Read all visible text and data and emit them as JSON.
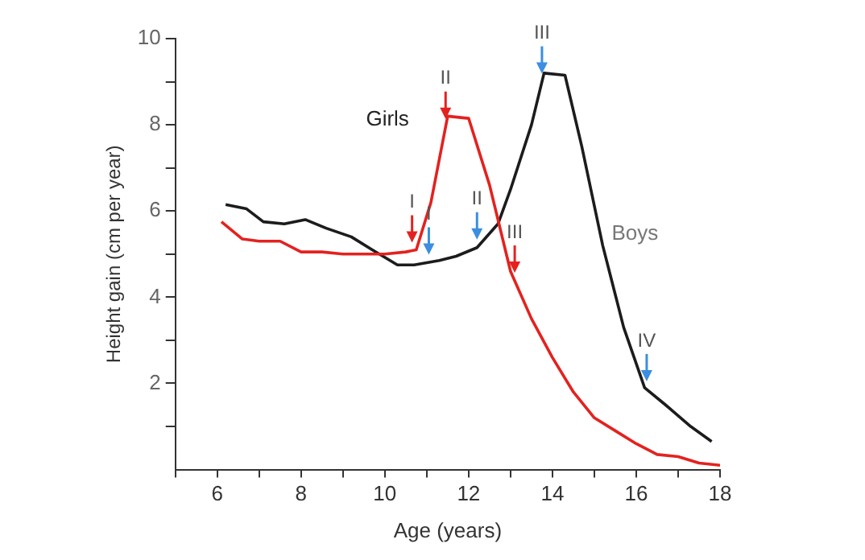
{
  "chart_data": {
    "type": "line",
    "xlabel": "Age (years)",
    "ylabel": "Height gain (cm per year)",
    "xlim": [
      5,
      18
    ],
    "ylim": [
      0,
      10
    ],
    "xticks": [
      {
        "value": 5,
        "label": null
      },
      6,
      {
        "value": 7,
        "label": null
      },
      8,
      {
        "value": 9,
        "label": null
      },
      10,
      {
        "value": 11,
        "label": null
      },
      12,
      {
        "value": 13,
        "label": null
      },
      14,
      {
        "value": 15,
        "label": null
      },
      16,
      {
        "value": 17,
        "label": null
      },
      18
    ],
    "yticks": [
      {
        "value": 1,
        "label": null
      },
      2,
      {
        "value": 3,
        "label": null
      },
      4,
      {
        "value": 5,
        "label": null
      },
      6,
      {
        "value": 7,
        "label": null
      },
      8,
      {
        "value": 9,
        "label": null
      },
      10
    ],
    "grid": false,
    "legend": "top left",
    "marker": "none",
    "line_style": "solid",
    "series": [
      {
        "name": "Girls",
        "color": "#e3221f",
        "x": [
          6.1,
          6.6,
          7,
          7.5,
          8,
          8.5,
          9,
          9.5,
          10,
          10.5,
          10.75,
          11.1,
          11.5,
          12,
          12.5,
          13,
          13.5,
          14,
          14.5,
          15,
          15.5,
          16,
          16.5,
          17,
          17.5,
          18
        ],
        "values": [
          5.75,
          5.35,
          5.3,
          5.3,
          5.05,
          5.05,
          5.0,
          5.0,
          5.0,
          5.05,
          5.1,
          6.2,
          8.2,
          8.15,
          6.6,
          4.6,
          3.5,
          2.6,
          1.8,
          1.2,
          0.9,
          0.6,
          0.35,
          0.3,
          0.15,
          0.1
        ]
      },
      {
        "name": "Boys",
        "color": "#1c1c1c",
        "x": [
          6.2,
          6.7,
          7.1,
          7.6,
          8.1,
          8.6,
          9.2,
          9.7,
          10.3,
          10.7,
          11.3,
          11.7,
          12.2,
          12.7,
          13.0,
          13.5,
          13.8,
          14.3,
          14.7,
          15.2,
          15.7,
          16.2,
          16.7,
          17.3,
          17.8
        ],
        "values": [
          6.15,
          6.05,
          5.75,
          5.7,
          5.8,
          5.6,
          5.4,
          5.1,
          4.75,
          4.75,
          4.85,
          4.95,
          5.15,
          5.7,
          6.5,
          8.0,
          9.2,
          9.15,
          7.5,
          5.2,
          3.3,
          1.9,
          1.5,
          1.0,
          0.65
        ]
      }
    ],
    "annotations": [
      {
        "text": "I",
        "x": 10.65,
        "y": 5.08
      },
      {
        "text": "II",
        "x": 11.45,
        "y": 7.95
      },
      {
        "text": "III",
        "x": 13.1,
        "y": 4.38
      },
      {
        "text": "I",
        "x": 11.05,
        "y": 4.8
      },
      {
        "text": "II",
        "x": 12.2,
        "y": 5.15
      },
      {
        "text": "III",
        "x": 13.75,
        "y": 9.0
      },
      {
        "text": "IV",
        "x": 16.25,
        "y": 1.86
      }
    ]
  }
}
